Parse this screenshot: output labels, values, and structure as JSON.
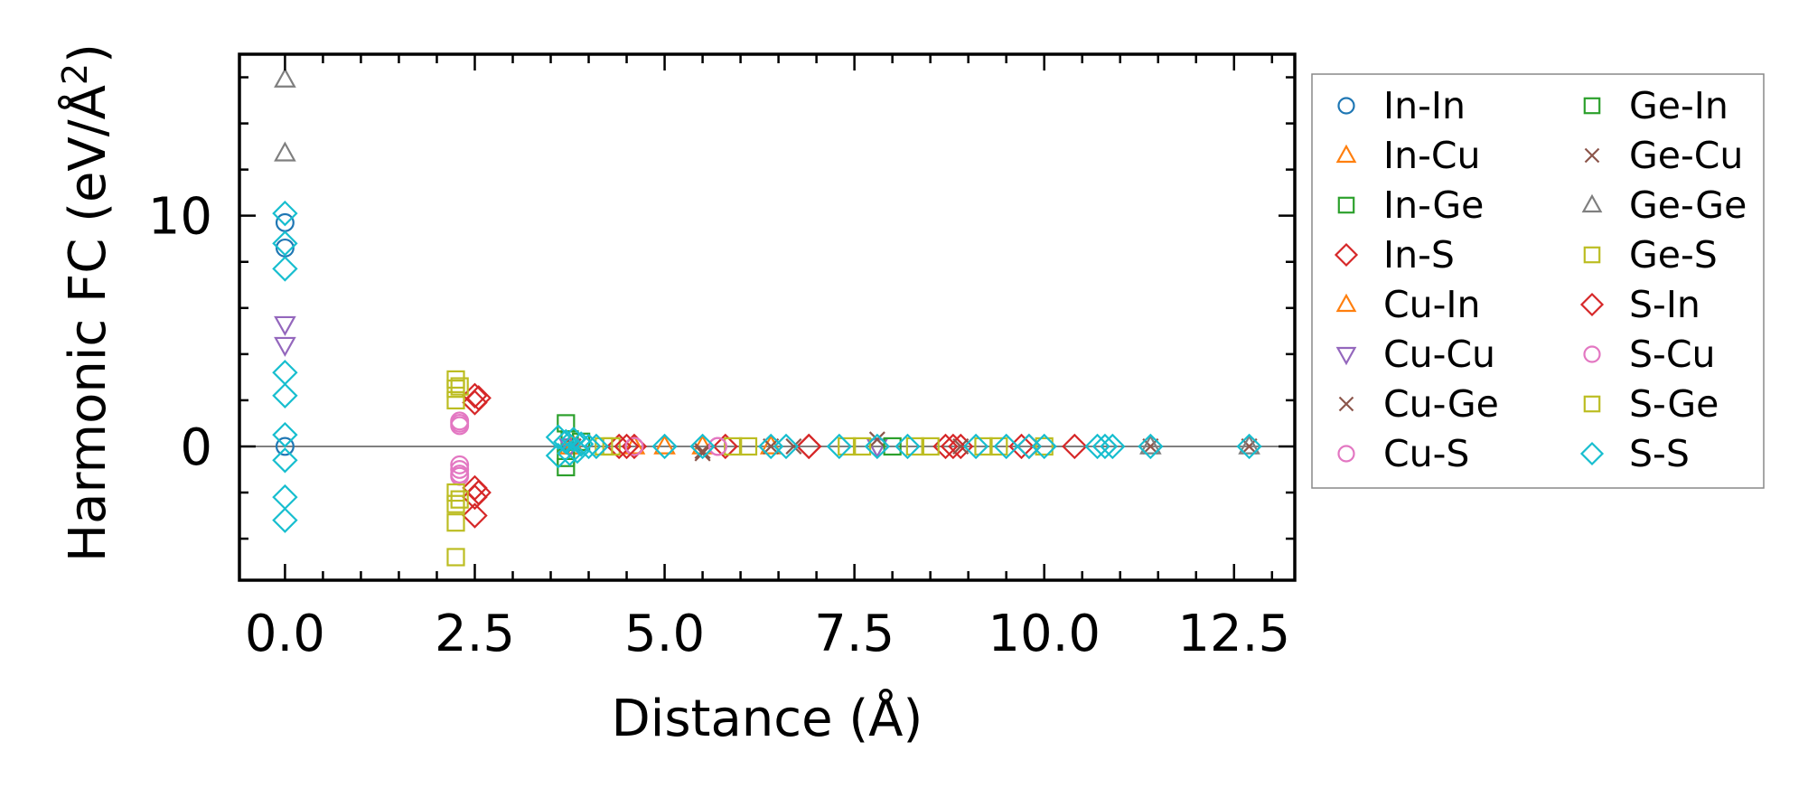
{
  "chart_data": {
    "type": "scatter",
    "title": "",
    "xlabel": "Distance (Å)",
    "ylabel": "Harmonic FC (eV/Å",
    "ylabel_superscript": "2",
    "ylabel_close": ")",
    "xlim": [
      -0.6,
      13.3
    ],
    "ylim": [
      -5.8,
      17.0
    ],
    "xticks": [
      0.0,
      2.5,
      5.0,
      7.5,
      10.0,
      12.5
    ],
    "xtick_labels": [
      "0.0",
      "2.5",
      "5.0",
      "7.5",
      "10.0",
      "12.5"
    ],
    "yticks": [
      0,
      10
    ],
    "ytick_labels": [
      "0",
      "10"
    ],
    "zero_line": true,
    "legend_position": "outside-right",
    "legend_columns": 2,
    "series": [
      {
        "name": "In-In",
        "marker": "circle",
        "color": "#1f77b4",
        "points": [
          [
            0,
            9.7
          ],
          [
            0,
            8.6
          ],
          [
            0,
            0
          ]
        ]
      },
      {
        "name": "In-Cu",
        "marker": "triangle-up",
        "color": "#ff7f0e",
        "points": [
          [
            3.75,
            0
          ],
          [
            4.6,
            0
          ],
          [
            5.5,
            0
          ]
        ]
      },
      {
        "name": "In-Ge",
        "marker": "square",
        "color": "#2ca02c",
        "points": [
          [
            3.7,
            1.0
          ],
          [
            3.7,
            -0.9
          ],
          [
            3.75,
            0.3
          ]
        ]
      },
      {
        "name": "In-S",
        "marker": "diamond",
        "color": "#d62728",
        "points": [
          [
            2.5,
            2.2
          ],
          [
            2.5,
            1.9
          ],
          [
            2.5,
            -1.8
          ],
          [
            2.5,
            -2.2
          ],
          [
            2.5,
            -3.0
          ],
          [
            4.4,
            0
          ],
          [
            4.6,
            0
          ],
          [
            5.8,
            0
          ],
          [
            6.9,
            0
          ],
          [
            8.7,
            0
          ],
          [
            8.9,
            0
          ],
          [
            9.7,
            0
          ],
          [
            10.4,
            0
          ]
        ]
      },
      {
        "name": "Cu-In",
        "marker": "triangle-up",
        "color": "#ff7f0e",
        "points": [
          [
            3.8,
            0
          ],
          [
            5.0,
            0
          ],
          [
            6.4,
            0
          ]
        ]
      },
      {
        "name": "Cu-Cu",
        "marker": "triangle-down",
        "color": "#9467bd",
        "points": [
          [
            0,
            5.3
          ],
          [
            0,
            4.4
          ],
          [
            3.75,
            0
          ],
          [
            7.8,
            0
          ]
        ]
      },
      {
        "name": "Cu-Ge",
        "marker": "x",
        "color": "#8c564b",
        "points": [
          [
            3.8,
            0
          ],
          [
            5.5,
            -0.3
          ],
          [
            7.8,
            0.3
          ]
        ]
      },
      {
        "name": "Cu-S",
        "marker": "circle",
        "color": "#e377c2",
        "points": [
          [
            2.3,
            1.1
          ],
          [
            2.3,
            0.9
          ],
          [
            2.3,
            -0.8
          ],
          [
            2.3,
            -1.0
          ],
          [
            2.3,
            -1.3
          ],
          [
            4.6,
            0
          ],
          [
            5.7,
            0
          ]
        ]
      },
      {
        "name": "Ge-In",
        "marker": "square",
        "color": "#2ca02c",
        "points": [
          [
            3.7,
            -0.5
          ],
          [
            3.9,
            0.2
          ],
          [
            8.0,
            0
          ]
        ]
      },
      {
        "name": "Ge-Cu",
        "marker": "x",
        "color": "#8c564b",
        "points": [
          [
            5.5,
            -0.2
          ],
          [
            6.4,
            0
          ],
          [
            6.7,
            0
          ],
          [
            8.9,
            0
          ],
          [
            11.4,
            0
          ],
          [
            12.7,
            0
          ]
        ]
      },
      {
        "name": "Ge-Ge",
        "marker": "triangle-up",
        "color": "#7f7f7f",
        "points": [
          [
            0,
            15.9
          ],
          [
            0,
            12.7
          ],
          [
            11.4,
            0
          ],
          [
            12.7,
            0
          ]
        ]
      },
      {
        "name": "Ge-S",
        "marker": "square",
        "color": "#bcbd22",
        "points": [
          [
            2.25,
            2.9
          ],
          [
            2.25,
            2.5
          ],
          [
            2.25,
            2.0
          ],
          [
            2.25,
            -2.0
          ],
          [
            2.25,
            -2.5
          ],
          [
            2.25,
            -3.3
          ],
          [
            2.25,
            -4.8
          ],
          [
            4.3,
            0
          ],
          [
            5.9,
            0
          ],
          [
            7.4,
            0
          ],
          [
            8.5,
            0
          ],
          [
            9.2,
            0
          ],
          [
            10.0,
            0
          ]
        ]
      },
      {
        "name": "S-In",
        "marker": "diamond",
        "color": "#d62728",
        "points": [
          [
            2.55,
            2.1
          ],
          [
            2.55,
            -2.0
          ],
          [
            4.5,
            0
          ],
          [
            6.9,
            0
          ],
          [
            8.8,
            0
          ],
          [
            9.8,
            0
          ]
        ]
      },
      {
        "name": "S-Cu",
        "marker": "circle",
        "color": "#e377c2",
        "points": [
          [
            2.3,
            1.0
          ],
          [
            2.3,
            -1.2
          ],
          [
            5.7,
            0
          ]
        ]
      },
      {
        "name": "S-Ge",
        "marker": "square",
        "color": "#bcbd22",
        "points": [
          [
            2.3,
            2.6
          ],
          [
            2.3,
            -2.3
          ],
          [
            4.2,
            0
          ],
          [
            6.1,
            0
          ],
          [
            7.6,
            0
          ],
          [
            8.3,
            0
          ],
          [
            9.4,
            0
          ]
        ]
      },
      {
        "name": "S-S",
        "marker": "diamond",
        "color": "#17becf",
        "points": [
          [
            0,
            10.1
          ],
          [
            0,
            8.8
          ],
          [
            0,
            7.7
          ],
          [
            0,
            3.2
          ],
          [
            0,
            2.2
          ],
          [
            0,
            0.5
          ],
          [
            0,
            -0.6
          ],
          [
            0,
            -2.2
          ],
          [
            0,
            -3.2
          ],
          [
            3.6,
            0.4
          ],
          [
            3.6,
            -0.4
          ],
          [
            3.7,
            0.2
          ],
          [
            3.75,
            -0.3
          ],
          [
            3.8,
            0.3
          ],
          [
            3.85,
            -0.2
          ],
          [
            3.9,
            0.1
          ],
          [
            4.0,
            0
          ],
          [
            4.1,
            0
          ],
          [
            5.0,
            0
          ],
          [
            5.5,
            0
          ],
          [
            6.4,
            0
          ],
          [
            6.6,
            0
          ],
          [
            7.3,
            0
          ],
          [
            7.8,
            0
          ],
          [
            8.2,
            0
          ],
          [
            9.1,
            0
          ],
          [
            9.5,
            0
          ],
          [
            9.8,
            0
          ],
          [
            10.0,
            0
          ],
          [
            10.7,
            0
          ],
          [
            10.8,
            0
          ],
          [
            10.9,
            0
          ],
          [
            11.4,
            0
          ],
          [
            12.7,
            0
          ]
        ]
      }
    ]
  }
}
